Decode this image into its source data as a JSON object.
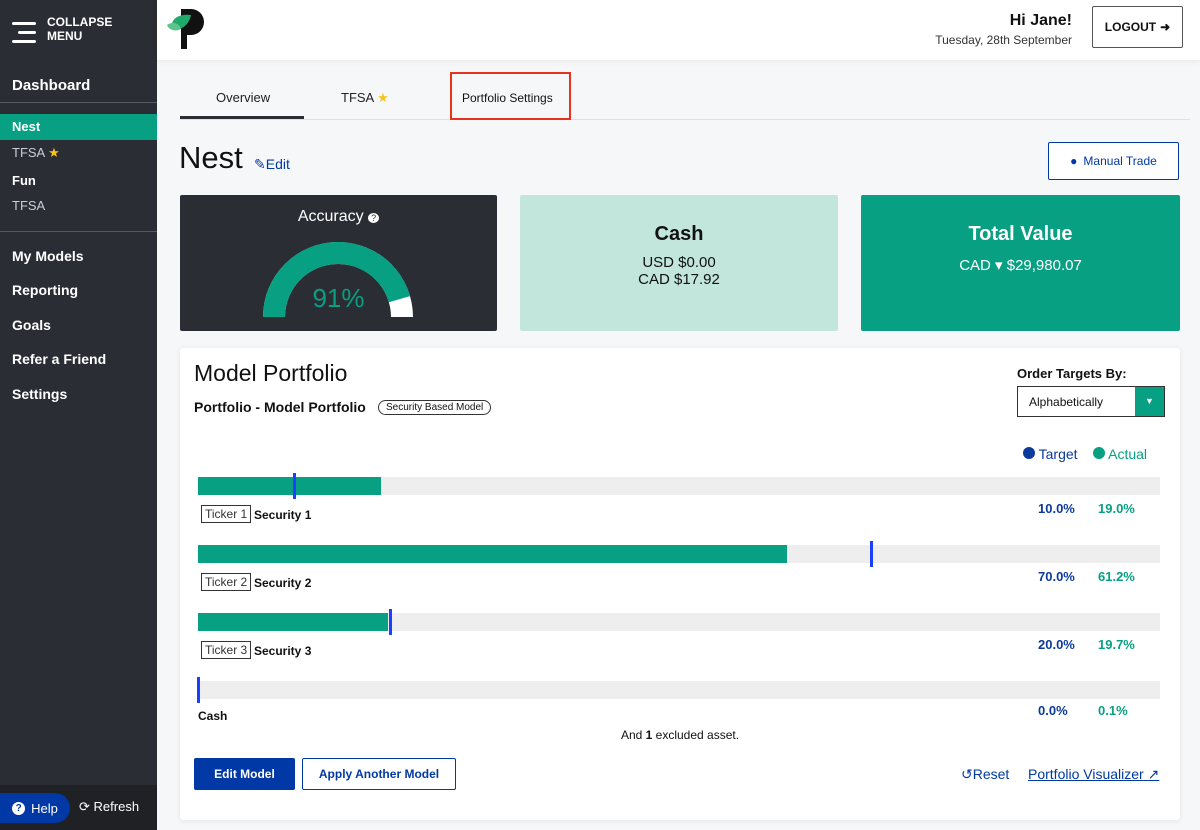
{
  "colors": {
    "sidebar": "#2a2d33",
    "accent": "#07a083",
    "primary": "#0039a6",
    "cash_card": "#c2e5dc",
    "highlight": "#e8321e"
  },
  "sidebar": {
    "collapse_label_1": "COLLAPSE",
    "collapse_label_2": "MENU",
    "dashboard": "Dashboard",
    "accounts": [
      {
        "label": "Nest",
        "active": true
      },
      {
        "label": "TFSA",
        "star": true
      },
      {
        "label": "Fun"
      },
      {
        "label": "TFSA"
      }
    ],
    "links": [
      "My Models",
      "Reporting",
      "Goals",
      "Refer a Friend",
      "Settings"
    ],
    "help": "Help",
    "refresh": "Refresh"
  },
  "header": {
    "greeting": "Hi Jane!",
    "date": "Tuesday, 28th September",
    "logout": "LOGOUT"
  },
  "tabs": [
    {
      "label": "Overview",
      "active": true
    },
    {
      "label": "TFSA",
      "star": true
    },
    {
      "label": "Portfolio Settings",
      "highlighted": true
    }
  ],
  "page": {
    "title": "Nest",
    "edit": "Edit",
    "manual_trade": "Manual Trade"
  },
  "accuracy": {
    "title": "Accuracy",
    "value": "91%",
    "percent": 91
  },
  "cash": {
    "title": "Cash",
    "usd": "USD $0.00",
    "cad": "CAD $17.92"
  },
  "total": {
    "title": "Total Value",
    "currency": "CAD",
    "value": "$29,980.07"
  },
  "model": {
    "title": "Model Portfolio",
    "subtitle": "Portfolio - Model Portfolio",
    "badge": "Security Based Model",
    "order_label": "Order Targets By:",
    "order_value": "Alphabetically",
    "legend_target": "Target",
    "legend_actual": "Actual",
    "rows": [
      {
        "ticker": "Ticker 1",
        "name": "Security 1",
        "target": 10.0,
        "actual": 19.0,
        "target_label": "10.0%",
        "actual_label": "19.0%"
      },
      {
        "ticker": "Ticker 2",
        "name": "Security 2",
        "target": 70.0,
        "actual": 61.2,
        "target_label": "70.0%",
        "actual_label": "61.2%"
      },
      {
        "ticker": "Ticker 3",
        "name": "Security 3",
        "target": 20.0,
        "actual": 19.7,
        "target_label": "20.0%",
        "actual_label": "19.7%"
      },
      {
        "ticker": "",
        "name": "Cash",
        "target": 0.0,
        "actual": 0.1,
        "target_label": "0.0%",
        "actual_label": "0.1%"
      }
    ],
    "excluded_pre": "And ",
    "excluded_count": "1",
    "excluded_post": " excluded asset.",
    "edit_model": "Edit Model",
    "apply_model": "Apply Another Model",
    "reset": "Reset",
    "visualizer": "Portfolio Visualizer"
  }
}
